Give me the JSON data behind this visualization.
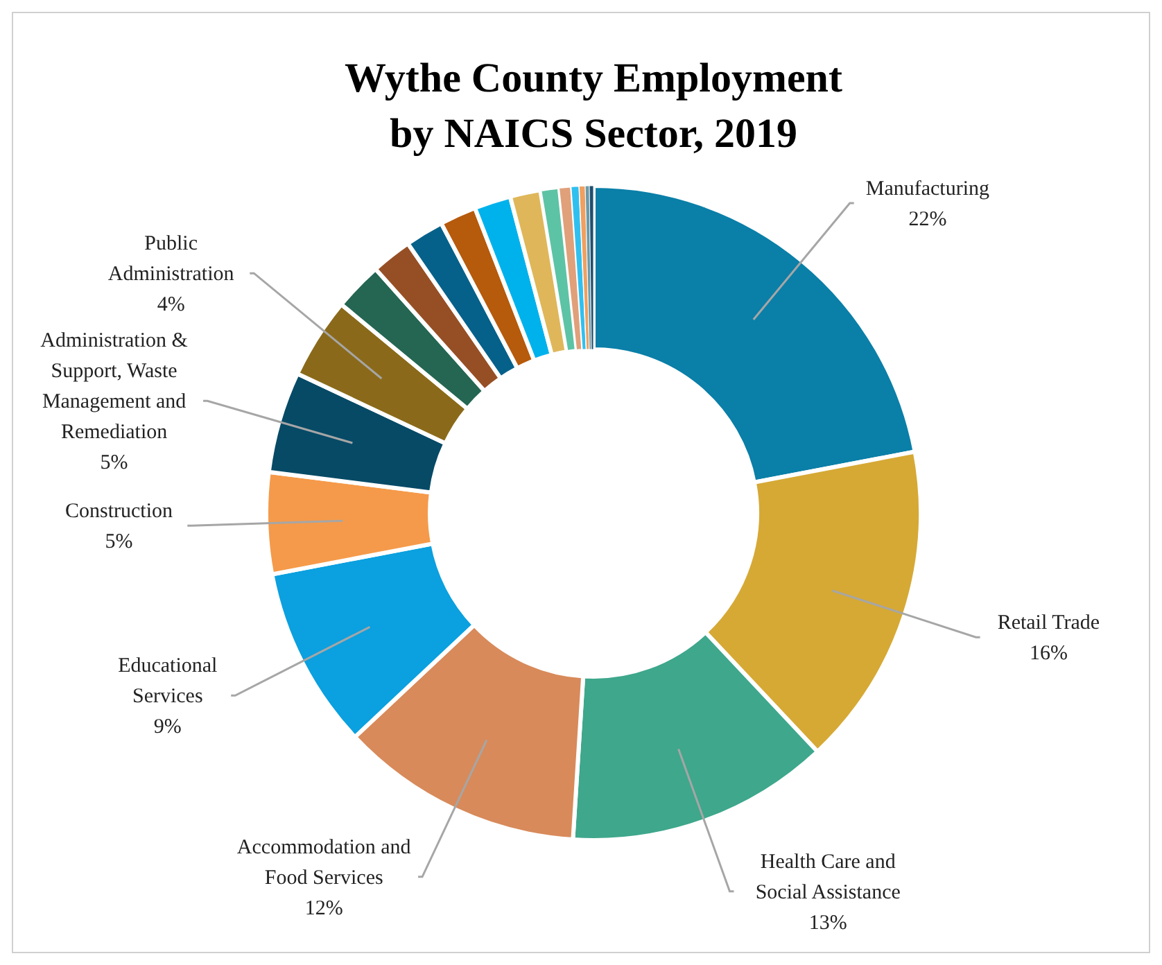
{
  "chart_data": {
    "type": "donut",
    "title": "Wythe County Employment by NAICS Sector, 2019",
    "categories": [
      "Manufacturing",
      "Retail Trade",
      "Health Care and Social Assistance",
      "Accommodation and Food Services",
      "Educational Services",
      "Construction",
      "Administration & Support, Waste Management and Remediation",
      "Public Administration",
      null,
      null,
      null,
      null,
      null,
      null,
      null,
      null,
      null,
      null,
      null,
      null
    ],
    "values": [
      22,
      16,
      13,
      12,
      9,
      5,
      5,
      4,
      2.4,
      2.0,
      1.9,
      1.8,
      1.8,
      1.5,
      0.9,
      0.6,
      0.4,
      0.3,
      0.2,
      0.2
    ],
    "value_labels": [
      "22%",
      "16%",
      "13%",
      "12%",
      "9%",
      "5%",
      "5%",
      "4%",
      null,
      null,
      null,
      null,
      null,
      null,
      null,
      null,
      null,
      null,
      null,
      null
    ],
    "colors": [
      "#0a7fa8",
      "#d6a935",
      "#3ea78c",
      "#d88a5a",
      "#0ba0df",
      "#f59a4a",
      "#064a66",
      "#8a6a1a",
      "#246652",
      "#964f25",
      "#06618a",
      "#b65a0c",
      "#00b2ec",
      "#dfb75a",
      "#5dc3a5",
      "#e0a07a",
      "#30c0f0",
      "#f0a060",
      "#6a9aaa",
      "#1f4f6f"
    ]
  }
}
